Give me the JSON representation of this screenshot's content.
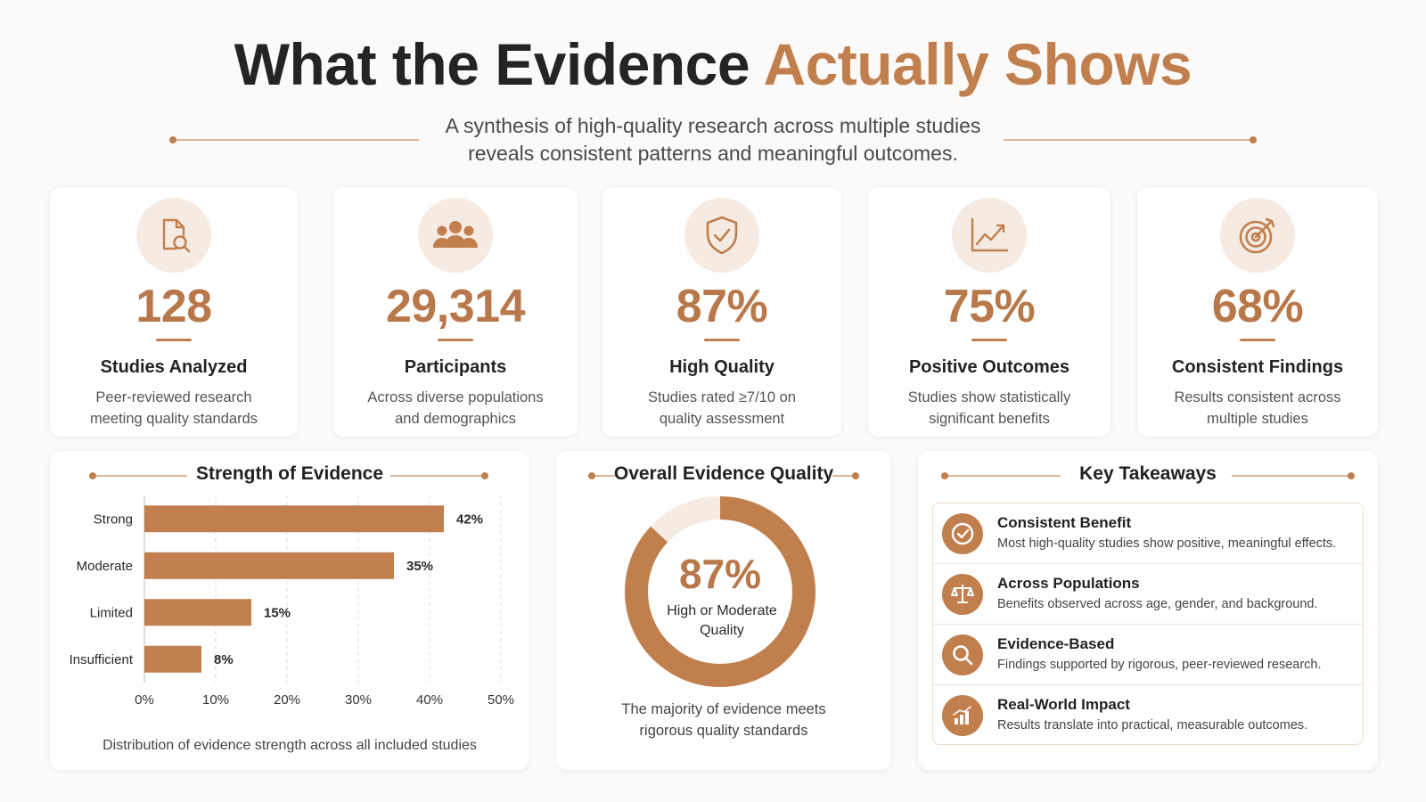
{
  "header": {
    "title_main": "What the Evidence ",
    "title_accent": "Actually Shows",
    "subtitle_line1": "A synthesis of high-quality research across multiple studies",
    "subtitle_line2": "reveals consistent patterns and meaningful outcomes."
  },
  "colors": {
    "accent": "#c07f4d",
    "accent_light": "#f6ebe2",
    "text_dark": "#242424"
  },
  "stats": [
    {
      "icon": "document-search-icon",
      "value": "128",
      "label": "Studies Analyzed",
      "desc_line1": "Peer-reviewed research",
      "desc_line2": "meeting quality standards"
    },
    {
      "icon": "people-group-icon",
      "value": "29,314",
      "label": "Participants",
      "desc_line1": "Across diverse populations",
      "desc_line2": "and demographics"
    },
    {
      "icon": "shield-check-icon",
      "value": "87%",
      "label": "High Quality",
      "desc_line1": "Studies rated ≥7/10 on",
      "desc_line2": "quality assessment"
    },
    {
      "icon": "trend-chart-icon",
      "value": "75%",
      "label": "Positive Outcomes",
      "desc_line1": "Studies show statistically",
      "desc_line2": "significant benefits"
    },
    {
      "icon": "target-icon",
      "value": "68%",
      "label": "Consistent Findings",
      "desc_line1": "Results consistent across",
      "desc_line2": "multiple studies"
    }
  ],
  "chart_data": [
    {
      "type": "bar",
      "orientation": "horizontal",
      "title": "Strength of Evidence",
      "categories": [
        "Strong",
        "Moderate",
        "Limited",
        "Insufficient"
      ],
      "values": [
        42,
        35,
        15,
        8
      ],
      "value_labels": [
        "42%",
        "35%",
        "15%",
        "8%"
      ],
      "xlim": [
        0,
        50
      ],
      "xticks": [
        "0%",
        "10%",
        "20%",
        "30%",
        "40%",
        "50%"
      ],
      "grid": "vertical dashed",
      "caption": "Distribution of evidence strength across all included studies"
    },
    {
      "type": "pie",
      "style": "donut",
      "title": "Overall Evidence Quality",
      "values": [
        87,
        13
      ],
      "center_value": "87%",
      "center_label_line1": "High or Moderate",
      "center_label_line2": "Quality",
      "caption_line1": "The majority of evidence meets",
      "caption_line2": "rigorous quality standards"
    }
  ],
  "takeaways": {
    "title": "Key Takeaways",
    "items": [
      {
        "icon": "check-circle-icon",
        "title": "Consistent Benefit",
        "desc": "Most high-quality studies show positive, meaningful effects."
      },
      {
        "icon": "balance-scale-icon",
        "title": "Across Populations",
        "desc": "Benefits observed across age, gender, and background."
      },
      {
        "icon": "magnifier-icon",
        "title": "Evidence-Based",
        "desc": "Findings supported by rigorous, peer-reviewed research."
      },
      {
        "icon": "bar-growth-icon",
        "title": "Real-World Impact",
        "desc": "Results translate into practical, measurable outcomes."
      }
    ]
  }
}
